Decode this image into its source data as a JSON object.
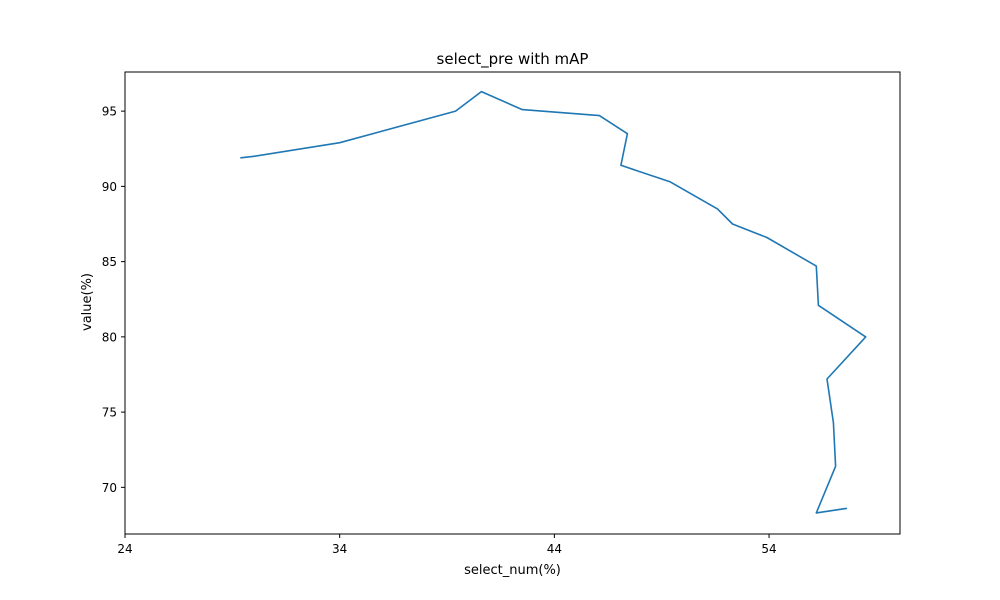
{
  "chart_data": {
    "type": "line",
    "title": "select_pre with mAP",
    "xlabel": "select_num(%)",
    "ylabel": "value(%)",
    "xlim": [
      24,
      60.1
    ],
    "ylim": [
      66.9,
      97.6
    ],
    "xticks": [
      24,
      34,
      44,
      54
    ],
    "yticks": [
      70,
      75,
      80,
      85,
      90,
      95
    ],
    "grid": false,
    "series": [
      {
        "name": "mAP",
        "color": "#1f77b4",
        "x": [
          29.4,
          30.0,
          34.0,
          39.4,
          40.6,
          42.5,
          46.1,
          47.4,
          47.1,
          49.4,
          51.6,
          52.3,
          53.9,
          56.2,
          56.3,
          58.5,
          56.7,
          57.0,
          57.1,
          56.2,
          57.6
        ],
        "y": [
          91.9,
          92.0,
          92.9,
          95.0,
          96.3,
          95.1,
          94.7,
          93.5,
          91.4,
          90.3,
          88.5,
          87.5,
          86.6,
          84.7,
          82.1,
          80.0,
          77.2,
          74.3,
          71.4,
          68.3,
          68.6
        ]
      }
    ]
  }
}
